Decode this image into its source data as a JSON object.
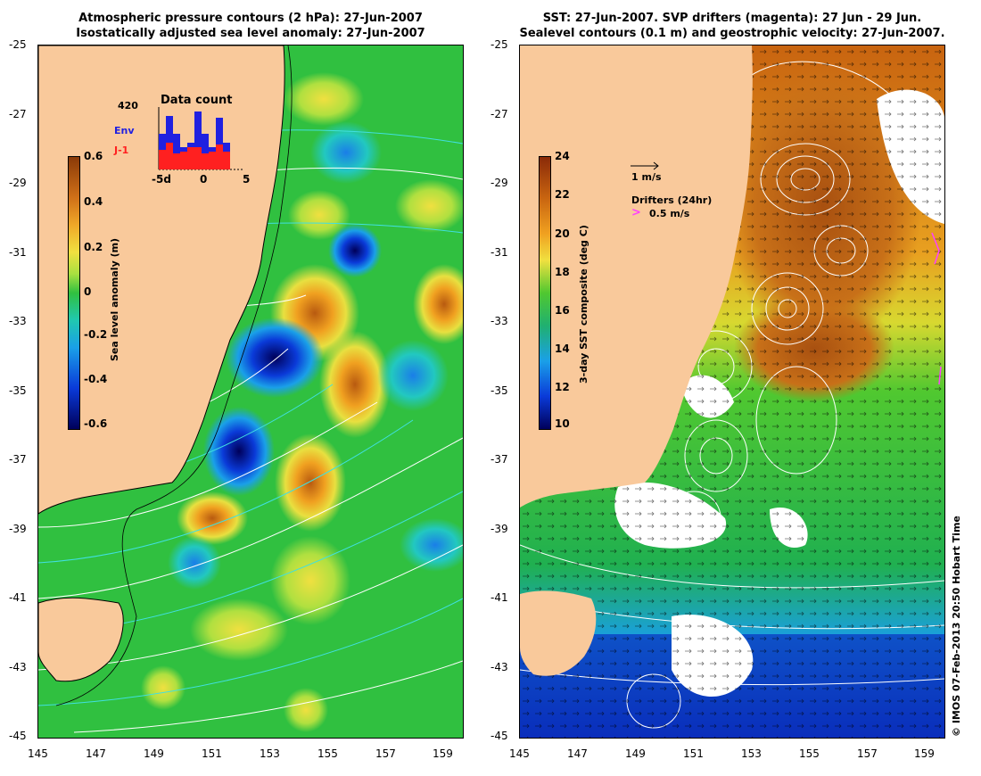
{
  "left_panel": {
    "title_line1": "Atmospheric pressure contours (2 hPa): 27-Jun-2007",
    "title_line2": "Isostatically adjusted sea level anomaly: 27-Jun-2007",
    "colorbar_label": "Sea level anomaly (m)",
    "colorbar_ticks": [
      "0.6",
      "0.4",
      "0.2",
      "0",
      "-0.2",
      "-0.4",
      "-0.6"
    ],
    "inset": {
      "title": "Data count",
      "max_label": "420",
      "env_label": "Env",
      "j1_label": "J-1",
      "axis_ticks": [
        "-5d",
        "0",
        "5"
      ],
      "env_color": "#2020e0",
      "j1_color": "#ff2020"
    }
  },
  "right_panel": {
    "title_line1": "SST: 27-Jun-2007. SVP drifters (magenta): 27 Jun - 29 Jun.",
    "title_line2": "Sealevel contours (0.1 m) and geostrophic velocity: 27-Jun-2007.",
    "colorbar_label": "3-day SST composite (deg C)",
    "colorbar_ticks": [
      "24",
      "22",
      "20",
      "18",
      "16",
      "14",
      "12",
      "10"
    ],
    "velocity_legend": "1 m/s",
    "drifter_legend_title": "Drifters (24hr)",
    "drifter_legend_value": "0.5 m/s"
  },
  "axes": {
    "lat_ticks": [
      "-25",
      "-27",
      "-29",
      "-31",
      "-33",
      "-35",
      "-37",
      "-39",
      "-41",
      "-43",
      "-45"
    ],
    "lon_ticks": [
      "145",
      "147",
      "149",
      "151",
      "153",
      "155",
      "157",
      "159"
    ]
  },
  "copyright": "© IMOS 07-Feb-2013 20:50 Hobart Time",
  "colors": {
    "land": "#f9c99b",
    "ocean_green": "#2ec82e",
    "coast": "#000000",
    "contour": "#ffffff",
    "pressure": "#40e0e0"
  }
}
